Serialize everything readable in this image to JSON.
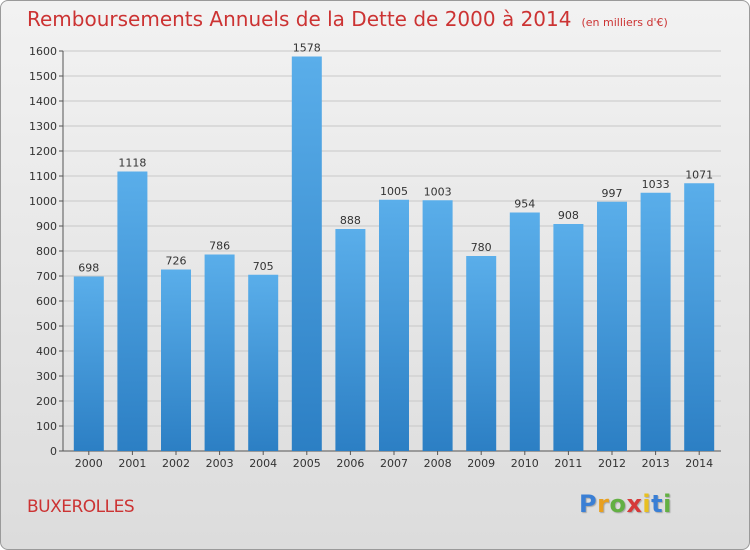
{
  "title": "Remboursements Annuels de la Dette de 2000 à 2014",
  "subtitle": "(en milliers d'€)",
  "commune": "BUXEROLLES",
  "logo": {
    "letters": [
      "P",
      "r",
      "o",
      "x",
      "i",
      "t",
      "i"
    ],
    "colors": [
      "#3a7fd5",
      "#e8a020",
      "#63b043",
      "#d63a3a",
      "#e8c020",
      "#3a7fd5",
      "#63b043"
    ]
  },
  "colors": {
    "bar_top": "#5aaeea",
    "bar_bottom": "#2c7fc4",
    "title": "#cc3333"
  },
  "chart_data": {
    "type": "bar",
    "title": "Remboursements Annuels de la Dette de 2000 à 2014",
    "xlabel": "",
    "ylabel": "",
    "categories": [
      "2000",
      "2001",
      "2002",
      "2003",
      "2004",
      "2005",
      "2006",
      "2007",
      "2008",
      "2009",
      "2010",
      "2011",
      "2012",
      "2013",
      "2014"
    ],
    "values": [
      698,
      1118,
      726,
      786,
      705,
      1578,
      888,
      1005,
      1003,
      780,
      954,
      908,
      997,
      1033,
      1071
    ],
    "ylim": [
      0,
      1600
    ],
    "yticks": [
      0,
      100,
      200,
      300,
      400,
      500,
      600,
      700,
      800,
      900,
      1000,
      1100,
      1200,
      1300,
      1400,
      1500,
      1600
    ],
    "grid": true,
    "data_labels": true
  }
}
